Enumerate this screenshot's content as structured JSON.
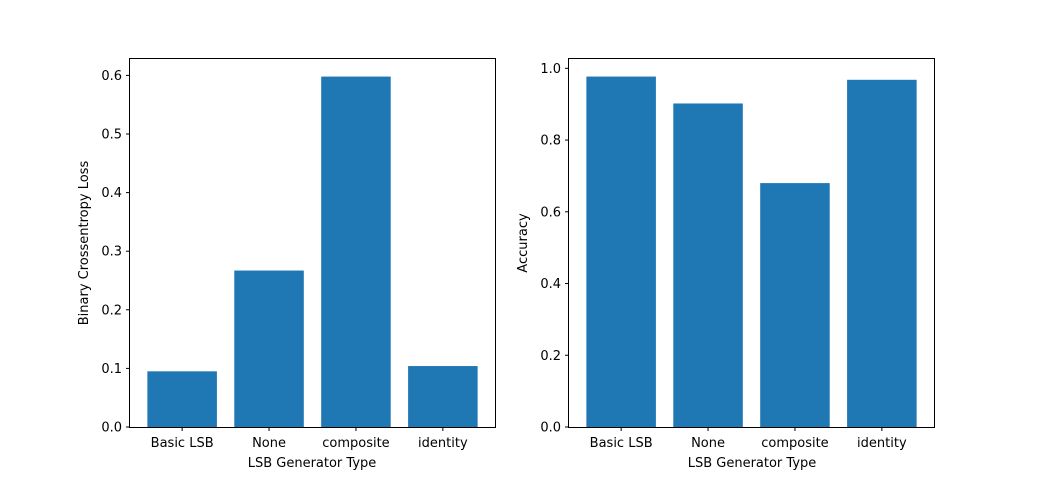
{
  "chart_data": [
    {
      "type": "bar",
      "categories": [
        "Basic LSB",
        "None",
        "composite",
        "identity"
      ],
      "values": [
        0.095,
        0.267,
        0.598,
        0.104
      ],
      "xlabel": "LSB Generator Type",
      "ylabel": "Binary Crossentropy Loss",
      "ylim": [
        0,
        0.628
      ],
      "yticks": [
        0.0,
        0.1,
        0.2,
        0.3,
        0.4,
        0.5,
        0.6
      ],
      "ytick_labels": [
        "0.0",
        "0.1",
        "0.2",
        "0.3",
        "0.4",
        "0.5",
        "0.6"
      ],
      "bar_color": "#1f77b4",
      "grid": false
    },
    {
      "type": "bar",
      "categories": [
        "Basic LSB",
        "None",
        "composite",
        "identity"
      ],
      "values": [
        0.977,
        0.902,
        0.68,
        0.968
      ],
      "xlabel": "LSB Generator Type",
      "ylabel": "Accuracy",
      "ylim": [
        0,
        1.026
      ],
      "yticks": [
        0.0,
        0.2,
        0.4,
        0.6,
        0.8,
        1.0
      ],
      "ytick_labels": [
        "0.0",
        "0.2",
        "0.4",
        "0.6",
        "0.8",
        "1.0"
      ],
      "bar_color": "#1f77b4",
      "grid": false
    }
  ]
}
